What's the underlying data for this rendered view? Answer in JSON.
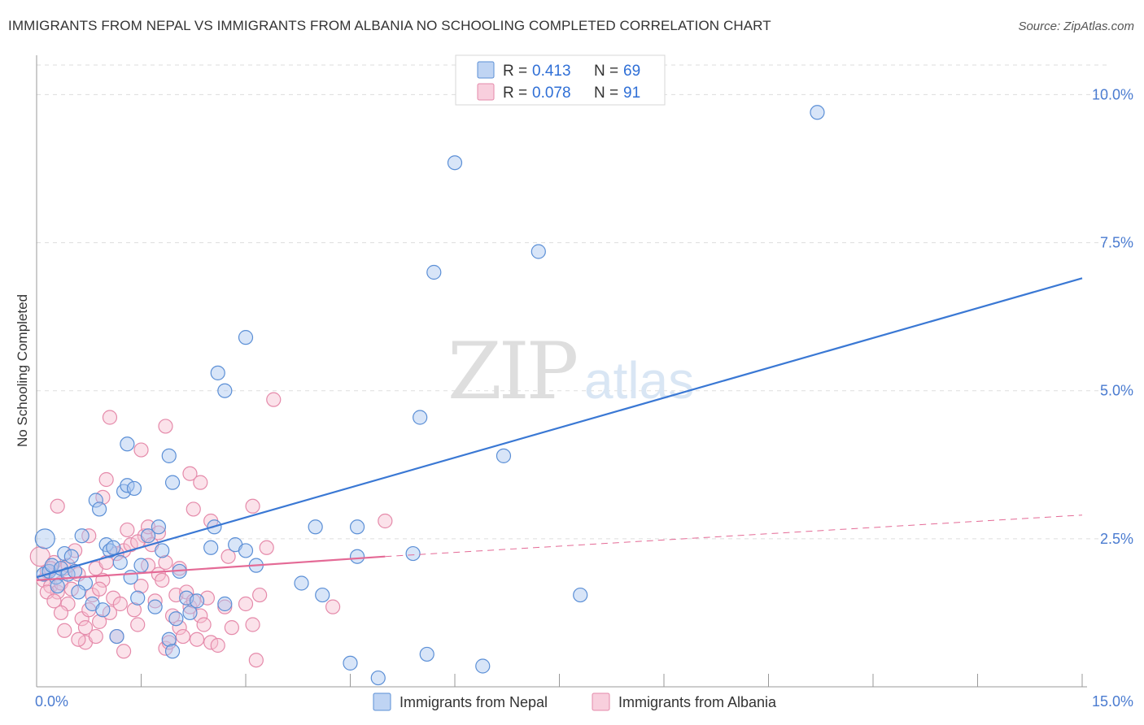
{
  "title": "IMMIGRANTS FROM NEPAL VS IMMIGRANTS FROM ALBANIA NO SCHOOLING COMPLETED CORRELATION CHART",
  "source": "Source: ZipAtlas.com",
  "watermark": {
    "zip": "ZIP",
    "atlas": "atlas"
  },
  "colors": {
    "nepal_fill": "#a9c6ef",
    "nepal_stroke": "#5b8fd6",
    "nepal_line": "#3a78d4",
    "albania_fill": "#f6bfd1",
    "albania_stroke": "#e58aaa",
    "albania_line": "#e46a96",
    "tick_text": "#4a7bd0",
    "grid": "#dddddd"
  },
  "legend": {
    "rows": [
      {
        "r_label": "R =",
        "r_value": "0.413",
        "n_label": "N =",
        "n_value": "69",
        "series": "nepal"
      },
      {
        "r_label": "R =",
        "r_value": "0.078",
        "n_label": "N =",
        "n_value": "91",
        "series": "albania"
      }
    ]
  },
  "chart_data": {
    "type": "scatter",
    "title": "IMMIGRANTS FROM NEPAL VS IMMIGRANTS FROM ALBANIA NO SCHOOLING COMPLETED CORRELATION CHART",
    "xlabel": "",
    "ylabel": "No Schooling Completed",
    "xlim": [
      0,
      15
    ],
    "ylim": [
      0,
      10.5
    ],
    "x_tick_labels": [
      "0.0%",
      "15.0%"
    ],
    "y_ticks": [
      2.5,
      5.0,
      7.5,
      10.0
    ],
    "y_tick_labels": [
      "2.5%",
      "5.0%",
      "7.5%",
      "10.0%"
    ],
    "grid": true,
    "legend_position": "top-center",
    "series": [
      {
        "name": "Immigrants from Nepal",
        "key": "nepal",
        "trend": {
          "x0": 0.0,
          "y0": 1.85,
          "x1": 15.0,
          "y1": 6.9
        },
        "points": [
          [
            0.12,
            2.5
          ],
          [
            0.1,
            1.9
          ],
          [
            0.18,
            1.95
          ],
          [
            0.22,
            2.05
          ],
          [
            0.28,
            1.85
          ],
          [
            0.35,
            2.0
          ],
          [
            0.3,
            1.7
          ],
          [
            0.4,
            2.25
          ],
          [
            0.45,
            1.9
          ],
          [
            0.5,
            2.2
          ],
          [
            0.55,
            1.95
          ],
          [
            0.65,
            2.55
          ],
          [
            0.7,
            1.75
          ],
          [
            0.8,
            1.4
          ],
          [
            0.85,
            3.15
          ],
          [
            0.9,
            3.0
          ],
          [
            1.0,
            2.4
          ],
          [
            1.05,
            2.3
          ],
          [
            1.1,
            2.35
          ],
          [
            1.2,
            2.1
          ],
          [
            1.25,
            3.3
          ],
          [
            1.3,
            3.4
          ],
          [
            1.35,
            1.85
          ],
          [
            1.4,
            3.35
          ],
          [
            1.45,
            1.5
          ],
          [
            1.5,
            2.05
          ],
          [
            1.6,
            2.55
          ],
          [
            1.7,
            1.35
          ],
          [
            1.75,
            2.7
          ],
          [
            1.8,
            2.3
          ],
          [
            1.9,
            0.8
          ],
          [
            1.95,
            0.6
          ],
          [
            2.05,
            1.95
          ],
          [
            2.15,
            1.5
          ],
          [
            2.2,
            1.25
          ],
          [
            2.3,
            1.45
          ],
          [
            2.5,
            2.35
          ],
          [
            2.55,
            2.7
          ],
          [
            2.7,
            1.4
          ],
          [
            2.85,
            2.4
          ],
          [
            3.0,
            2.3
          ],
          [
            3.15,
            2.05
          ],
          [
            1.3,
            4.1
          ],
          [
            1.9,
            3.9
          ],
          [
            1.95,
            3.45
          ],
          [
            2.6,
            5.3
          ],
          [
            2.7,
            5.0
          ],
          [
            3.0,
            5.9
          ],
          [
            3.8,
            1.75
          ],
          [
            4.0,
            2.7
          ],
          [
            4.1,
            1.55
          ],
          [
            4.5,
            0.4
          ],
          [
            4.6,
            2.7
          ],
          [
            4.6,
            2.2
          ],
          [
            4.9,
            0.15
          ],
          [
            5.4,
            2.25
          ],
          [
            5.5,
            4.55
          ],
          [
            5.6,
            0.55
          ],
          [
            5.7,
            7.0
          ],
          [
            6.0,
            8.85
          ],
          [
            6.4,
            0.35
          ],
          [
            6.7,
            3.9
          ],
          [
            7.2,
            7.35
          ],
          [
            7.8,
            1.55
          ],
          [
            11.2,
            9.7
          ],
          [
            1.15,
            0.85
          ],
          [
            0.95,
            1.3
          ],
          [
            2.0,
            1.15
          ],
          [
            0.6,
            1.6
          ]
        ]
      },
      {
        "name": "Immigrants from Albania",
        "key": "albania",
        "trend": {
          "x0": 0.0,
          "y0": 1.8,
          "x1": 5.0,
          "y1": 2.2
        },
        "trend_dashed": {
          "x0": 5.0,
          "y0": 2.2,
          "x1": 15.0,
          "y1": 2.9
        },
        "points": [
          [
            0.05,
            2.2
          ],
          [
            0.1,
            1.8
          ],
          [
            0.15,
            1.95
          ],
          [
            0.2,
            1.7
          ],
          [
            0.25,
            2.1
          ],
          [
            0.3,
            1.6
          ],
          [
            0.35,
            1.75
          ],
          [
            0.4,
            2.0
          ],
          [
            0.45,
            1.4
          ],
          [
            0.5,
            1.65
          ],
          [
            0.55,
            2.3
          ],
          [
            0.6,
            1.9
          ],
          [
            0.65,
            1.15
          ],
          [
            0.7,
            0.75
          ],
          [
            0.75,
            1.3
          ],
          [
            0.8,
            1.55
          ],
          [
            0.85,
            2.0
          ],
          [
            0.9,
            1.1
          ],
          [
            0.95,
            1.8
          ],
          [
            1.0,
            2.1
          ],
          [
            1.05,
            1.25
          ],
          [
            1.1,
            1.5
          ],
          [
            1.15,
            0.85
          ],
          [
            1.2,
            1.4
          ],
          [
            1.25,
            2.3
          ],
          [
            1.3,
            2.65
          ],
          [
            1.35,
            2.4
          ],
          [
            1.4,
            1.3
          ],
          [
            1.45,
            1.05
          ],
          [
            1.5,
            1.7
          ],
          [
            1.55,
            2.55
          ],
          [
            1.6,
            2.05
          ],
          [
            1.65,
            2.4
          ],
          [
            1.7,
            1.45
          ],
          [
            1.75,
            1.9
          ],
          [
            1.8,
            1.8
          ],
          [
            1.85,
            0.65
          ],
          [
            1.9,
            0.75
          ],
          [
            1.95,
            1.2
          ],
          [
            2.0,
            1.55
          ],
          [
            2.05,
            1.0
          ],
          [
            2.1,
            0.85
          ],
          [
            2.15,
            1.6
          ],
          [
            2.2,
            1.35
          ],
          [
            2.25,
            1.45
          ],
          [
            2.3,
            0.8
          ],
          [
            2.35,
            1.2
          ],
          [
            2.4,
            1.05
          ],
          [
            2.45,
            1.5
          ],
          [
            2.5,
            0.75
          ],
          [
            2.6,
            0.7
          ],
          [
            2.7,
            1.35
          ],
          [
            2.8,
            1.0
          ],
          [
            3.0,
            1.4
          ],
          [
            3.1,
            1.05
          ],
          [
            3.15,
            0.45
          ],
          [
            3.2,
            1.55
          ],
          [
            3.3,
            2.35
          ],
          [
            1.05,
            4.55
          ],
          [
            1.5,
            4.0
          ],
          [
            1.85,
            4.4
          ],
          [
            1.0,
            3.5
          ],
          [
            2.2,
            3.6
          ],
          [
            2.35,
            3.45
          ],
          [
            2.25,
            3.0
          ],
          [
            2.5,
            2.8
          ],
          [
            3.1,
            3.05
          ],
          [
            3.4,
            4.85
          ],
          [
            4.25,
            1.35
          ],
          [
            5.0,
            2.8
          ],
          [
            0.3,
            3.05
          ],
          [
            0.75,
            2.55
          ],
          [
            0.95,
            3.2
          ],
          [
            1.6,
            2.7
          ],
          [
            1.75,
            2.6
          ],
          [
            1.25,
            0.6
          ],
          [
            0.7,
            1.0
          ],
          [
            0.6,
            0.8
          ],
          [
            0.35,
            1.25
          ],
          [
            0.45,
            2.05
          ],
          [
            0.15,
            1.6
          ],
          [
            0.25,
            1.45
          ],
          [
            0.2,
            2.0
          ],
          [
            1.85,
            2.1
          ],
          [
            2.05,
            2.0
          ],
          [
            1.15,
            2.25
          ],
          [
            0.9,
            1.65
          ],
          [
            2.75,
            2.2
          ],
          [
            0.4,
            0.95
          ],
          [
            0.85,
            0.85
          ],
          [
            1.45,
            2.45
          ]
        ]
      }
    ]
  }
}
